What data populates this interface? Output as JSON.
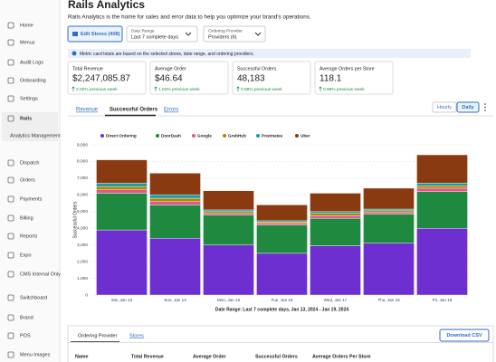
{
  "sidebar": {
    "items": [
      "Home",
      "Menus",
      "Audit Logs",
      "Onboarding",
      "Settings",
      "Rails",
      "Dispatch",
      "Orders",
      "Payments",
      "Billing",
      "Reports",
      "Expo",
      "CMS Internal Only",
      "Switchboard",
      "Brand",
      "POS",
      "Menu Images"
    ],
    "sub_item": "Analytics Management"
  },
  "header": {
    "title": "Rails Analytics",
    "subtitle": "Rails Analytics is the home for sales and error data to help you optimize your brand's operations."
  },
  "controls": {
    "edit_stores": "Edit Stores (408)",
    "date_range_label": "Date Range",
    "date_range_value": "Last 7 complete days",
    "provider_label": "Ordering Provider",
    "provider_value": "Providers (6)"
  },
  "notice": "Metric card totals are based on the selected stores, date range, and ordering providers.",
  "cards": [
    {
      "label": "Total Revenue",
      "value": "$2,247,085.87",
      "change": "2.02% previous week"
    },
    {
      "label": "Average Order",
      "value": "$46.64",
      "change": "1.04% previous week"
    },
    {
      "label": "Successful Orders",
      "value": "48,183",
      "change": "0.98% previous week"
    },
    {
      "label": "Average Orders per Store",
      "value": "118.1",
      "change": "0.98% previous week"
    }
  ],
  "tabs": [
    "Revenue",
    "Successful Orders",
    "Errors"
  ],
  "granularity": [
    "Hourly",
    "Daily"
  ],
  "table": {
    "tabs": [
      "Ordering Provider",
      "Stores"
    ],
    "button": "Download CSV",
    "columns": [
      "Name",
      "Total Revenue",
      "Average Order",
      "Successful Orders",
      "Average Orders Per Store"
    ]
  },
  "chart_data": {
    "type": "bar",
    "stacked": true,
    "categories": [
      "Sat, Jan 13",
      "Sun, Jan 14",
      "Mon, Jan 15",
      "Tue, Jan 16",
      "Wed, Jan 17",
      "Thu, Jan 18",
      "Fri, Jan 19"
    ],
    "series": [
      {
        "name": "Direct Ordering",
        "color": "#6d2fd0",
        "values": [
          3900,
          3400,
          3000,
          2500,
          2950,
          3100,
          4000
        ]
      },
      {
        "name": "DoorDash",
        "color": "#1f8a3f",
        "values": [
          2200,
          2000,
          1800,
          1700,
          1650,
          1750,
          2200
        ]
      },
      {
        "name": "Google",
        "color": "#e2558f",
        "values": [
          200,
          200,
          100,
          100,
          150,
          100,
          200
        ]
      },
      {
        "name": "GrubHub",
        "color": "#b38600",
        "values": [
          200,
          200,
          100,
          80,
          150,
          100,
          150
        ]
      },
      {
        "name": "Postmates",
        "color": "#139ea8",
        "values": [
          200,
          200,
          100,
          70,
          100,
          100,
          150
        ]
      },
      {
        "name": "Uber",
        "color": "#8a3a10",
        "values": [
          1400,
          1300,
          1150,
          950,
          1100,
          1250,
          1700
        ]
      }
    ],
    "ylim": [
      0,
      9000
    ],
    "yticks": [
      0,
      {
        "value": 1000,
        "label": "1,000"
      },
      {
        "value": 2000,
        "label": "2,000"
      },
      {
        "value": 3000,
        "label": "3,000"
      },
      {
        "value": 4000,
        "label": "4,000"
      },
      {
        "value": 5000,
        "label": "5,000"
      },
      {
        "value": 6000,
        "label": "6,000"
      },
      {
        "value": 7000,
        "label": "7,000"
      },
      {
        "value": 8000,
        "label": "8,000"
      },
      {
        "value": 9000,
        "label": "9,000"
      }
    ],
    "y_label": "Successful Orders",
    "x_label": "Date Range: Last 7 complete days, Jan 13, 2024 - Jan 19, 2024",
    "grid": true,
    "legend": "top"
  }
}
